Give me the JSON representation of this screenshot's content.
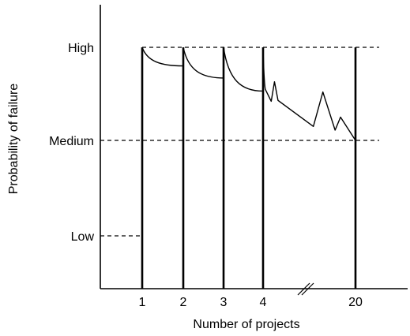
{
  "chart_data": {
    "type": "line",
    "xlabel": "Number of projects",
    "ylabel": "Probability of failure",
    "x_ticks": [
      "1",
      "2",
      "3",
      "4",
      "20"
    ],
    "y_ticks": [
      "Low",
      "Medium",
      "High"
    ],
    "y_levels": {
      "Low": 0,
      "Medium": 1,
      "High": 2
    },
    "reference_lines": [
      {
        "level": "Low",
        "style": "dashed",
        "from": "axis",
        "to": "1"
      },
      {
        "level": "Medium",
        "style": "dashed",
        "from": "axis",
        "to": "end"
      },
      {
        "level": "High",
        "style": "dashed",
        "from": "1",
        "to": "end"
      }
    ],
    "axis_break": "between 4 and 20",
    "segments": [
      {
        "from": "1",
        "to": "2",
        "start": 2.0,
        "end": 1.8
      },
      {
        "from": "2",
        "to": "3",
        "start": 2.0,
        "end": 1.67
      },
      {
        "from": "3",
        "to": "4",
        "start": 2.0,
        "end": 1.53
      }
    ],
    "tail": [
      {
        "x": 4.0,
        "y": 2.0
      },
      {
        "x": 4.08,
        "y": 1.55
      },
      {
        "x": 4.3,
        "y": 1.42
      },
      {
        "x": 4.42,
        "y": 1.63
      },
      {
        "x": 4.55,
        "y": 1.43
      },
      {
        "x": 5.85,
        "y": 1.15
      },
      {
        "x": 6.2,
        "y": 1.52
      },
      {
        "x": 6.65,
        "y": 1.11
      },
      {
        "x": 6.85,
        "y": 1.25
      },
      {
        "x": 7.4,
        "y": 1.0
      }
    ]
  }
}
